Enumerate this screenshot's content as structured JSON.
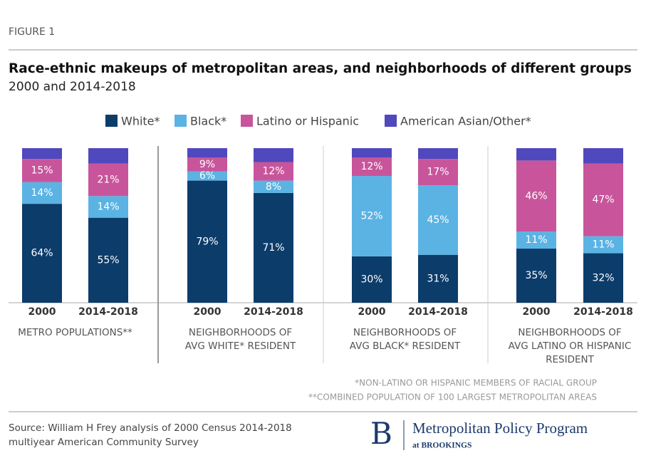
{
  "chart_data": {
    "type": "stacked_bar",
    "figure_label": "FIGURE 1",
    "title": "Race-ethnic makeups of metropolitan areas, and neighborhoods of different groups",
    "subtitle": "2000 and 2014-2018",
    "categories": [
      "2000",
      "2014-2018",
      "2000",
      "2014-2018",
      "2000",
      "2014-2018",
      "2000",
      "2014-2018"
    ],
    "group_labels": [
      [
        "METRO POPULATIONS**"
      ],
      [
        "NEIGHBORHOODS OF",
        "AVG WHITE* RESIDENT"
      ],
      [
        "NEIGHBORHOODS OF",
        "AVG BLACK* RESIDENT"
      ],
      [
        "NEIGHBORHOODS OF",
        "AVG LATINO OR HISPANIC",
        "RESIDENT"
      ]
    ],
    "series": [
      {
        "name": "White*",
        "color": "#0c3c6a",
        "values": [
          64,
          55,
          79,
          71,
          30,
          31,
          35,
          32
        ],
        "value_labels": [
          "64%",
          "55%",
          "79%",
          "71%",
          "30%",
          "31%",
          "35%",
          "32%"
        ]
      },
      {
        "name": "Black*",
        "color": "#5bb3e4",
        "values": [
          14,
          14,
          6,
          8,
          52,
          45,
          11,
          11
        ],
        "value_labels": [
          "14%",
          "14%",
          "6%",
          "8%",
          "52%",
          "45%",
          "11%",
          "11%"
        ]
      },
      {
        "name": "Latino or Hispanic",
        "color": "#c8559b",
        "values": [
          15,
          21,
          9,
          12,
          12,
          17,
          46,
          47
        ],
        "value_labels": [
          "15%",
          "21%",
          "9%",
          "12%",
          "12%",
          "17%",
          "46%",
          "47%"
        ]
      },
      {
        "name": "American Asian/Other*",
        "color": "#5048bd",
        "values": [
          7,
          10,
          6,
          9,
          6,
          7,
          8,
          10
        ]
      }
    ],
    "ylim": [
      0,
      100
    ],
    "footnotes": [
      "*NON-LATINO OR HISPANIC MEMBERS OF RACIAL GROUP",
      "**COMBINED POPULATION OF 100 LARGEST METROPOLITAN AREAS"
    ],
    "source": [
      "Source:  William H Frey analysis of 2000 Census 2014-2018",
      "multiyear American Community Survey"
    ],
    "logo": {
      "letter": "B",
      "name": "Metropolitan Policy Program",
      "org": "at BROOKINGS"
    }
  }
}
